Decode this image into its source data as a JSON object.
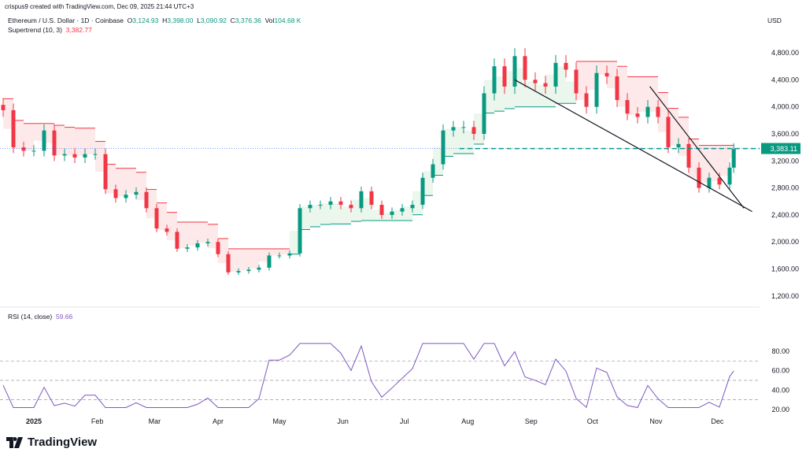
{
  "header": {
    "credit": "crispus9 created with TradingView.com, Dec 09, 2025 21:44 UTC+3",
    "symbol": "Ethereum / U.S. Dollar · 1D · Coinbase",
    "o_label": "O",
    "o": "3,124.93",
    "h_label": "H",
    "h": "3,398.00",
    "l_label": "L",
    "l": "3,090.92",
    "c_label": "C",
    "c": "3,376.36",
    "vol_label": "Vol",
    "vol": "104.68 K",
    "indicator": "Supertrend (10, 3)",
    "indicator_value": "3,382.77",
    "rsi": "RSI (14, close)",
    "rsi_value": "59.66",
    "currency": "USD"
  },
  "brand": "TradingView",
  "colors": {
    "up": "#089981",
    "down": "#f23645",
    "up_fill": "#e6f4e8",
    "down_fill": "#fde4e4",
    "rsi": "#7e57c2",
    "price_label": "#089981"
  },
  "chart_data": {
    "type": "candlestick",
    "price_axis": {
      "ylim": [
        1200,
        4800
      ],
      "ticks": [
        "4,800.00",
        "4,400.00",
        "4,000.00",
        "3,600.00",
        "3,200.00",
        "2,800.00",
        "2,400.00",
        "2,000.00",
        "1,600.00",
        "1,200.00"
      ],
      "tick_values": [
        4800,
        4400,
        4000,
        3600,
        3200,
        2800,
        2400,
        2000,
        1600,
        1200
      ]
    },
    "rsi_axis": {
      "ylim": [
        20,
        90
      ],
      "ticks": [
        "80.00",
        "60.00",
        "40.00",
        "20.00"
      ],
      "tick_values": [
        80,
        60,
        40,
        20
      ],
      "bands": [
        70,
        50,
        30
      ]
    },
    "time_ticks": [
      {
        "label": "2025",
        "d": "2025-01-01"
      },
      {
        "label": "Feb",
        "d": "2025-02-01"
      },
      {
        "label": "Mar",
        "d": "2025-03-01"
      },
      {
        "label": "Apr",
        "d": "2025-04-01"
      },
      {
        "label": "May",
        "d": "2025-05-01"
      },
      {
        "label": "Jun",
        "d": "2025-06-01"
      },
      {
        "label": "Jul",
        "d": "2025-07-01"
      },
      {
        "label": "Aug",
        "d": "2025-08-01"
      },
      {
        "label": "Sep",
        "d": "2025-09-01"
      },
      {
        "label": "Oct",
        "d": "2025-10-01"
      },
      {
        "label": "Nov",
        "d": "2025-11-01"
      },
      {
        "label": "Dec",
        "d": "2025-12-01"
      }
    ],
    "last_price": 3383.11,
    "last_price_label": "3,383.11",
    "trendlines": [
      {
        "from": [
          "2025-08-24",
          4400
        ],
        "to": [
          "2025-12-18",
          2450
        ]
      },
      {
        "from": [
          "2025-10-29",
          4300
        ],
        "to": [
          "2025-12-14",
          2500
        ]
      }
    ],
    "closes": [
      [
        "2024-12-17",
        3950
      ],
      [
        "2024-12-22",
        3400
      ],
      [
        "2024-12-27",
        3350
      ],
      [
        "2025-01-01",
        3350
      ],
      [
        "2025-01-06",
        3650
      ],
      [
        "2025-01-11",
        3280
      ],
      [
        "2025-01-16",
        3300
      ],
      [
        "2025-01-21",
        3250
      ],
      [
        "2025-01-26",
        3300
      ],
      [
        "2025-01-31",
        3300
      ],
      [
        "2025-02-05",
        2780
      ],
      [
        "2025-02-10",
        2650
      ],
      [
        "2025-02-15",
        2700
      ],
      [
        "2025-02-20",
        2740
      ],
      [
        "2025-02-25",
        2500
      ],
      [
        "2025-03-02",
        2200
      ],
      [
        "2025-03-07",
        2150
      ],
      [
        "2025-03-12",
        1900
      ],
      [
        "2025-03-17",
        1920
      ],
      [
        "2025-03-22",
        1980
      ],
      [
        "2025-03-27",
        2000
      ],
      [
        "2025-04-01",
        1820
      ],
      [
        "2025-04-06",
        1550
      ],
      [
        "2025-04-11",
        1570
      ],
      [
        "2025-04-16",
        1590
      ],
      [
        "2025-04-21",
        1620
      ],
      [
        "2025-04-26",
        1800
      ],
      [
        "2025-05-01",
        1800
      ],
      [
        "2025-05-06",
        1830
      ],
      [
        "2025-05-11",
        2500
      ],
      [
        "2025-05-16",
        2550
      ],
      [
        "2025-05-21",
        2550
      ],
      [
        "2025-05-26",
        2600
      ],
      [
        "2025-05-31",
        2550
      ],
      [
        "2025-06-05",
        2500
      ],
      [
        "2025-06-10",
        2750
      ],
      [
        "2025-06-15",
        2550
      ],
      [
        "2025-06-20",
        2400
      ],
      [
        "2025-06-25",
        2450
      ],
      [
        "2025-06-30",
        2500
      ],
      [
        "2025-07-05",
        2550
      ],
      [
        "2025-07-10",
        2950
      ],
      [
        "2025-07-15",
        3150
      ],
      [
        "2025-07-20",
        3650
      ],
      [
        "2025-07-25",
        3700
      ],
      [
        "2025-07-30",
        3700
      ],
      [
        "2025-08-04",
        3600
      ],
      [
        "2025-08-09",
        4200
      ],
      [
        "2025-08-14",
        4600
      ],
      [
        "2025-08-19",
        4300
      ],
      [
        "2025-08-24",
        4750
      ],
      [
        "2025-08-29",
        4400
      ],
      [
        "2025-09-03",
        4350
      ],
      [
        "2025-09-08",
        4300
      ],
      [
        "2025-09-13",
        4650
      ],
      [
        "2025-09-18",
        4550
      ],
      [
        "2025-09-23",
        4200
      ],
      [
        "2025-09-28",
        4000
      ],
      [
        "2025-10-03",
        4500
      ],
      [
        "2025-10-08",
        4450
      ],
      [
        "2025-10-13",
        4100
      ],
      [
        "2025-10-18",
        3900
      ],
      [
        "2025-10-23",
        3850
      ],
      [
        "2025-10-28",
        4000
      ],
      [
        "2025-11-02",
        3850
      ],
      [
        "2025-11-07",
        3400
      ],
      [
        "2025-11-12",
        3450
      ],
      [
        "2025-11-17",
        3100
      ],
      [
        "2025-11-22",
        2800
      ],
      [
        "2025-11-27",
        2950
      ],
      [
        "2025-12-02",
        2850
      ],
      [
        "2025-12-07",
        3100
      ],
      [
        "2025-12-09",
        3376
      ]
    ]
  }
}
